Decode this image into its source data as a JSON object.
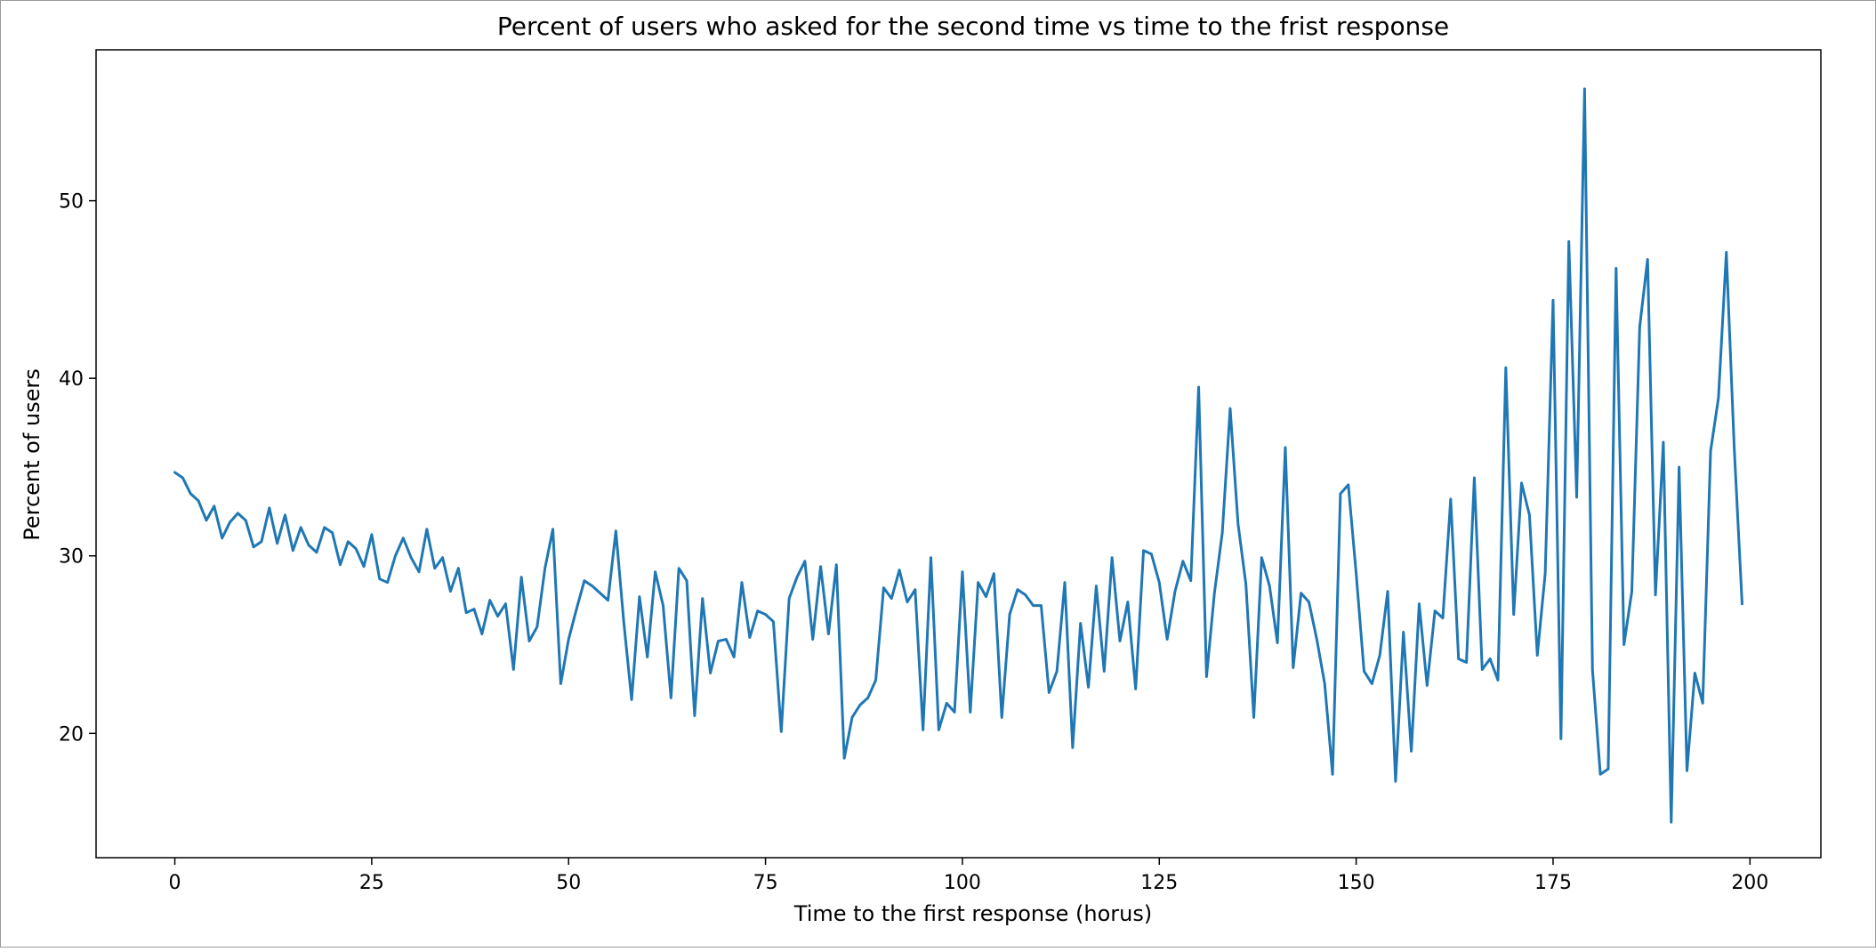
{
  "chart_data": {
    "type": "line",
    "title": "Percent of users who asked for the second time vs time to the frist response",
    "xlabel": "Time to the first response (horus)",
    "ylabel": "Percent of users",
    "xlim": [
      -10,
      209
    ],
    "ylim": [
      13.0,
      58.5
    ],
    "xticks": [
      0,
      25,
      50,
      75,
      100,
      125,
      150,
      175,
      200
    ],
    "yticks": [
      20,
      30,
      40,
      50
    ],
    "grid": false,
    "series_color": "#1f77b4",
    "series": [
      {
        "values": [
          34.7,
          34.4,
          33.5,
          33.1,
          32.0,
          32.8,
          31.0,
          31.9,
          32.4,
          32.0,
          30.5,
          30.8,
          32.7,
          30.7,
          32.3,
          30.3,
          31.6,
          30.6,
          30.2,
          31.6,
          31.3,
          29.5,
          30.8,
          30.4,
          29.4,
          31.2,
          28.7,
          28.5,
          30.0,
          31.0,
          29.9,
          29.1,
          31.5,
          29.3,
          29.9,
          28.0,
          29.3,
          26.8,
          27.0,
          25.6,
          27.5,
          26.6,
          27.3,
          23.6,
          28.8,
          25.2,
          26.0,
          29.3,
          31.5,
          22.8,
          25.3,
          27.0,
          28.6,
          28.3,
          27.9,
          27.5,
          31.4,
          26.3,
          21.9,
          27.7,
          24.3,
          29.1,
          27.2,
          22.0,
          29.3,
          28.6,
          21.0,
          27.6,
          23.4,
          25.2,
          25.3,
          24.3,
          28.5,
          25.4,
          26.9,
          26.7,
          26.3,
          20.1,
          27.6,
          28.8,
          29.7,
          25.3,
          29.4,
          25.6,
          29.5,
          18.6,
          20.9,
          21.6,
          22.0,
          23.0,
          28.2,
          27.6,
          29.2,
          27.4,
          28.1,
          20.2,
          29.9,
          20.2,
          21.7,
          21.2,
          29.1,
          21.2,
          28.5,
          27.7,
          29.0,
          20.9,
          26.7,
          28.1,
          27.8,
          27.2,
          27.2,
          22.3,
          23.5,
          28.5,
          19.2,
          26.2,
          22.6,
          28.3,
          23.5,
          29.9,
          25.2,
          27.4,
          22.5,
          30.3,
          30.1,
          28.5,
          25.3,
          28.0,
          29.7,
          28.6,
          39.5,
          23.2,
          27.9,
          31.3,
          38.3,
          31.8,
          28.4,
          20.9,
          29.9,
          28.3,
          25.1,
          36.1,
          23.7,
          27.9,
          27.4,
          25.3,
          22.8,
          17.7,
          33.5,
          34.0,
          29.0,
          23.5,
          22.8,
          24.4,
          28.0,
          17.3,
          25.7,
          19.0,
          27.3,
          22.7,
          26.9,
          26.5,
          33.2,
          24.2,
          24.0,
          34.4,
          23.6,
          24.2,
          23.0,
          40.6,
          26.7,
          34.1,
          32.3,
          24.4,
          29.0,
          44.4,
          19.7,
          47.7,
          33.3,
          56.3,
          23.6,
          17.7,
          18.0,
          46.2,
          25.0,
          28.0,
          42.9,
          46.7,
          27.8,
          36.4,
          15.0,
          35.0,
          17.9,
          23.4,
          21.7,
          35.9,
          38.9,
          47.1,
          36.1,
          27.3
        ]
      }
    ]
  }
}
